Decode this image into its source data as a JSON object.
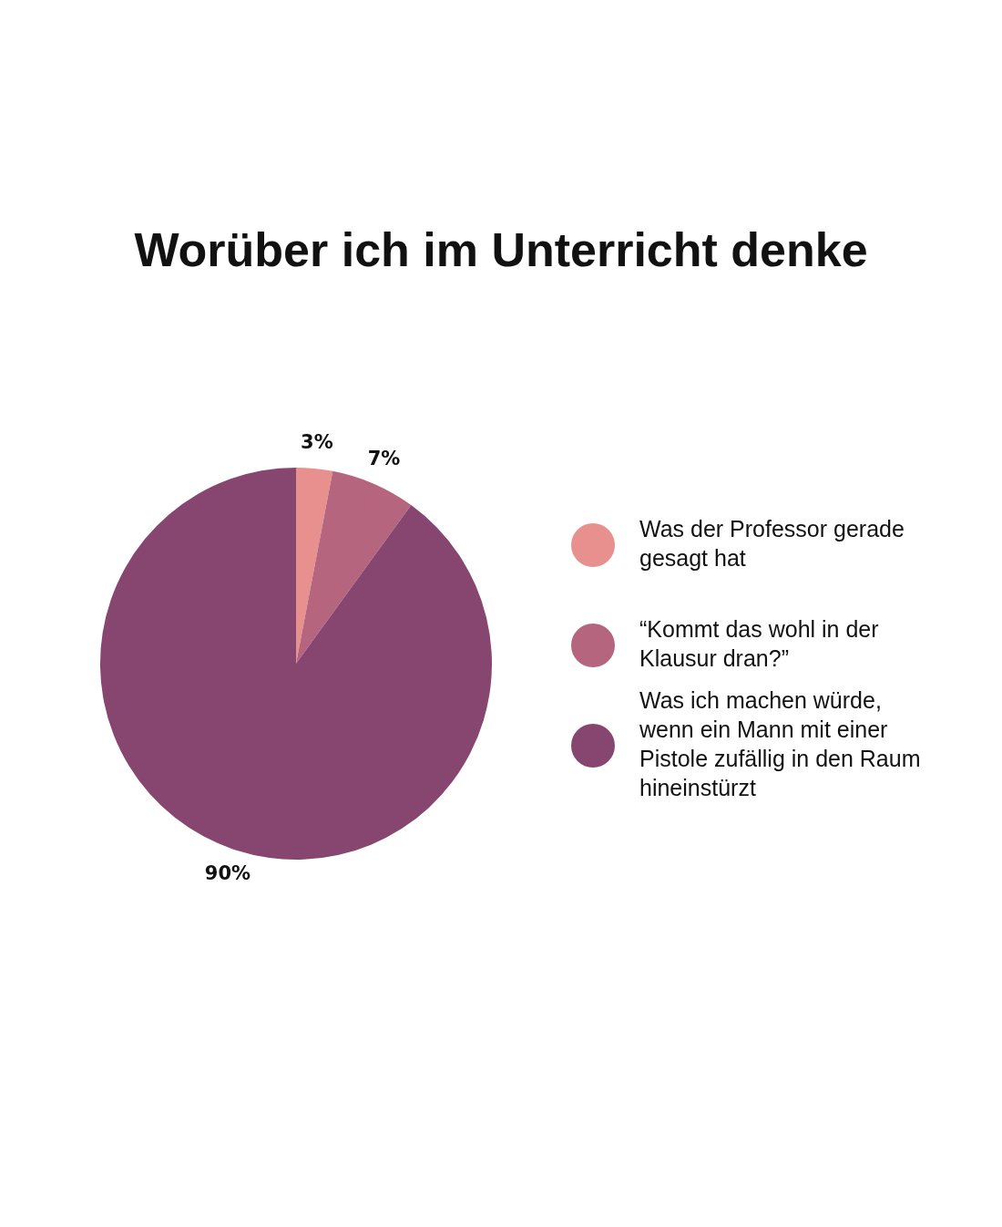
{
  "chart_data": {
    "type": "pie",
    "title": "Worüber ich im Unterricht denke",
    "categories": [
      "Was der Professor gerade gesagt hat",
      "“Kommt das wohl in der Klausur dran?”",
      "Was ich machen würde, wenn ein Mann mit einer Pistole zufällig in den Raum hineinstürzt"
    ],
    "values": [
      3,
      7,
      90
    ],
    "colors": [
      "#e8908e",
      "#b5657d",
      "#86466f"
    ],
    "value_labels": [
      "3%",
      "7%",
      "90%"
    ],
    "legend": "right"
  }
}
